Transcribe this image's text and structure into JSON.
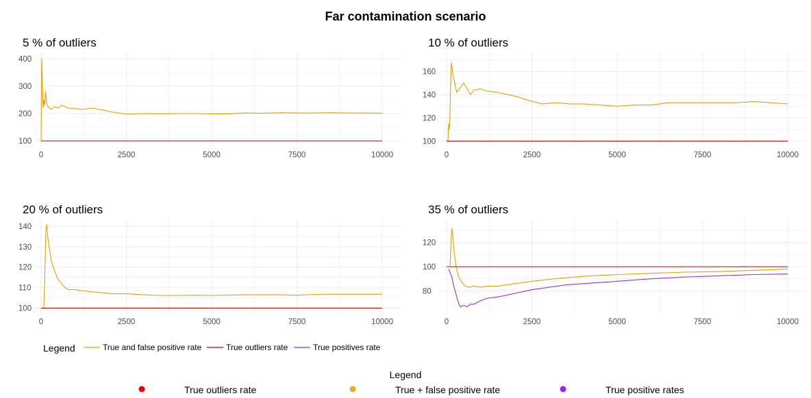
{
  "title": "Far contamination scenario",
  "colors": {
    "orange": "#E69F00",
    "red": "#CC0000",
    "purple": "#9932CC",
    "grid": "#EBEBEB",
    "legend_red": "#EE0000",
    "legend_orange": "#F5A623",
    "legend_purple": "#A020F0"
  },
  "chart_data": [
    {
      "type": "line",
      "title": "5 % of outliers",
      "xlim": [
        0,
        10000
      ],
      "ylim": [
        95,
        405
      ],
      "x_ticks": [
        0,
        2500,
        5000,
        7500,
        10000
      ],
      "x_tick_labels": [
        "0",
        "2500",
        "5000",
        "7500",
        "10000"
      ],
      "y_ticks": [
        100,
        200,
        300,
        400
      ],
      "y_tick_labels": [
        "100",
        "200",
        "300",
        "400"
      ],
      "grid": true,
      "series": [
        {
          "name": "True and false positive rate",
          "color": "orange",
          "points": [
            [
              0,
              100
            ],
            [
              20,
              400
            ],
            [
              40,
              300
            ],
            [
              60,
              220
            ],
            [
              80,
              250
            ],
            [
              100,
              230
            ],
            [
              130,
              280
            ],
            [
              160,
              240
            ],
            [
              200,
              225
            ],
            [
              300,
              215
            ],
            [
              400,
              225
            ],
            [
              500,
              220
            ],
            [
              600,
              230
            ],
            [
              700,
              225
            ],
            [
              800,
              220
            ],
            [
              1000,
              218
            ],
            [
              1200,
              215
            ],
            [
              1500,
              220
            ],
            [
              1800,
              213
            ],
            [
              2100,
              205
            ],
            [
              2500,
              198
            ],
            [
              3000,
              200
            ],
            [
              3500,
              199
            ],
            [
              4000,
              200
            ],
            [
              4500,
              200
            ],
            [
              5000,
              199
            ],
            [
              5500,
              199
            ],
            [
              6000,
              202
            ],
            [
              6500,
              201
            ],
            [
              7000,
              203
            ],
            [
              7500,
              202
            ],
            [
              8000,
              202
            ],
            [
              8500,
              203
            ],
            [
              9000,
              202
            ],
            [
              9500,
              202
            ],
            [
              10000,
              201
            ]
          ]
        },
        {
          "name": "True outliers rate",
          "color": "red",
          "points": [
            [
              0,
              100
            ],
            [
              10000,
              100
            ]
          ]
        }
      ]
    },
    {
      "type": "line",
      "title": "10 % of outliers",
      "xlim": [
        0,
        10000
      ],
      "ylim": [
        99,
        172
      ],
      "x_ticks": [
        0,
        2500,
        5000,
        7500,
        10000
      ],
      "x_tick_labels": [
        "0",
        "2500",
        "5000",
        "7500",
        "10000"
      ],
      "y_ticks": [
        100,
        120,
        140,
        160
      ],
      "y_tick_labels": [
        "100",
        "120",
        "140",
        "160"
      ],
      "grid": true,
      "series": [
        {
          "name": "True and false positive rate",
          "color": "orange",
          "points": [
            [
              0,
              100
            ],
            [
              40,
              100
            ],
            [
              60,
              115
            ],
            [
              80,
              110
            ],
            [
              100,
              125
            ],
            [
              120,
              150
            ],
            [
              140,
              168
            ],
            [
              170,
              160
            ],
            [
              200,
              155
            ],
            [
              250,
              148
            ],
            [
              300,
              142
            ],
            [
              400,
              146
            ],
            [
              500,
              150
            ],
            [
              600,
              145
            ],
            [
              700,
              140
            ],
            [
              800,
              144
            ],
            [
              1000,
              145
            ],
            [
              1200,
              143
            ],
            [
              1500,
              142
            ],
            [
              1800,
              140
            ],
            [
              2100,
              138
            ],
            [
              2400,
              135
            ],
            [
              2800,
              132
            ],
            [
              3200,
              133
            ],
            [
              3600,
              132
            ],
            [
              4000,
              132
            ],
            [
              4500,
              131
            ],
            [
              5000,
              130
            ],
            [
              5500,
              131
            ],
            [
              6000,
              131
            ],
            [
              6500,
              133
            ],
            [
              7000,
              133
            ],
            [
              7500,
              133
            ],
            [
              8000,
              133
            ],
            [
              8500,
              133
            ],
            [
              9000,
              134
            ],
            [
              9500,
              133
            ],
            [
              10000,
              132
            ]
          ]
        },
        {
          "name": "True outliers rate",
          "color": "red",
          "points": [
            [
              0,
              100
            ],
            [
              10000,
              100
            ]
          ]
        }
      ]
    },
    {
      "type": "line",
      "title": "20 % of outliers",
      "xlim": [
        0,
        10000
      ],
      "ylim": [
        99.5,
        141
      ],
      "x_ticks": [
        0,
        2500,
        5000,
        7500,
        10000
      ],
      "x_tick_labels": [
        "0",
        "2500",
        "5000",
        "7500",
        "10000"
      ],
      "y_ticks": [
        100,
        110,
        120,
        130,
        140
      ],
      "y_tick_labels": [
        "100",
        "110",
        "120",
        "130",
        "140"
      ],
      "grid": true,
      "series": [
        {
          "name": "True and false positive rate",
          "color": "orange",
          "points": [
            [
              0,
              100
            ],
            [
              80,
              100
            ],
            [
              100,
              110
            ],
            [
              120,
              125
            ],
            [
              140,
              138
            ],
            [
              160,
              141
            ],
            [
              200,
              134
            ],
            [
              250,
              128
            ],
            [
              300,
              123
            ],
            [
              400,
              118
            ],
            [
              500,
              114
            ],
            [
              600,
              112
            ],
            [
              700,
              110
            ],
            [
              800,
              109
            ],
            [
              1000,
              109
            ],
            [
              1200,
              108.5
            ],
            [
              1500,
              108
            ],
            [
              1800,
              107.5
            ],
            [
              2100,
              107
            ],
            [
              2500,
              107
            ],
            [
              3000,
              106.5
            ],
            [
              3500,
              106.2
            ],
            [
              4000,
              106.2
            ],
            [
              4500,
              106.3
            ],
            [
              5000,
              106.2
            ],
            [
              5500,
              106.4
            ],
            [
              6000,
              106.5
            ],
            [
              6500,
              106.5
            ],
            [
              7000,
              106.5
            ],
            [
              7500,
              106.3
            ],
            [
              8000,
              106.7
            ],
            [
              8500,
              106.8
            ],
            [
              9000,
              106.8
            ],
            [
              9500,
              106.8
            ],
            [
              10000,
              106.8
            ]
          ]
        },
        {
          "name": "True outliers rate",
          "color": "red",
          "points": [
            [
              0,
              100
            ],
            [
              10000,
              100
            ]
          ]
        }
      ]
    },
    {
      "type": "line",
      "title": "35 % of outliers",
      "xlim": [
        0,
        10000
      ],
      "ylim": [
        65,
        135
      ],
      "x_ticks": [
        0,
        2500,
        5000,
        7500,
        10000
      ],
      "x_tick_labels": [
        "0",
        "2500",
        "5000",
        "7500",
        "10000"
      ],
      "y_ticks": [
        80,
        100,
        120
      ],
      "y_tick_labels": [
        "80",
        "100",
        "120"
      ],
      "grid": true,
      "series": [
        {
          "name": "True and false positive rate",
          "color": "orange",
          "points": [
            [
              100,
              100
            ],
            [
              130,
              120
            ],
            [
              150,
              132
            ],
            [
              180,
              125
            ],
            [
              220,
              112
            ],
            [
              280,
              100
            ],
            [
              350,
              92
            ],
            [
              450,
              87
            ],
            [
              550,
              84
            ],
            [
              650,
              83
            ],
            [
              800,
              84
            ],
            [
              1000,
              83
            ],
            [
              1200,
              84
            ],
            [
              1500,
              84
            ],
            [
              2000,
              86
            ],
            [
              2500,
              88
            ],
            [
              3000,
              89.5
            ],
            [
              3500,
              91
            ],
            [
              4000,
              92
            ],
            [
              5000,
              93.5
            ],
            [
              6000,
              94.5
            ],
            [
              7000,
              95.5
            ],
            [
              8000,
              96
            ],
            [
              9000,
              97
            ],
            [
              9500,
              97.5
            ],
            [
              10000,
              98
            ]
          ]
        },
        {
          "name": "True outliers rate",
          "color": "red",
          "points": [
            [
              0,
              100
            ],
            [
              10000,
              100
            ]
          ]
        },
        {
          "name": "True positives rate",
          "color": "purple",
          "points": [
            [
              60,
              98
            ],
            [
              100,
              95
            ],
            [
              150,
              92
            ],
            [
              200,
              85
            ],
            [
              300,
              75
            ],
            [
              350,
              70
            ],
            [
              400,
              67
            ],
            [
              500,
              68
            ],
            [
              600,
              67
            ],
            [
              700,
              69
            ],
            [
              800,
              69
            ],
            [
              1000,
              72
            ],
            [
              1200,
              74
            ],
            [
              1500,
              75
            ],
            [
              2000,
              78
            ],
            [
              2500,
              81
            ],
            [
              3000,
              83
            ],
            [
              3500,
              85
            ],
            [
              4000,
              86
            ],
            [
              5000,
              88
            ],
            [
              6000,
              90
            ],
            [
              7000,
              91.5
            ],
            [
              8000,
              92.5
            ],
            [
              9000,
              93.5
            ],
            [
              10000,
              94
            ]
          ]
        }
      ]
    }
  ],
  "legend": {
    "title": "Legend",
    "items": [
      {
        "label": "True and false positive rate",
        "color": "orange"
      },
      {
        "label": "True outliers rate",
        "color": "red"
      },
      {
        "label": "True positives rate",
        "color": "purple"
      }
    ]
  },
  "legend2": {
    "title": "Legend",
    "items": [
      {
        "label": "True outliers rate",
        "color": "legend_red"
      },
      {
        "label": "True + false positive rate",
        "color": "legend_orange"
      },
      {
        "label": "True positive rates",
        "color": "legend_purple"
      }
    ]
  }
}
